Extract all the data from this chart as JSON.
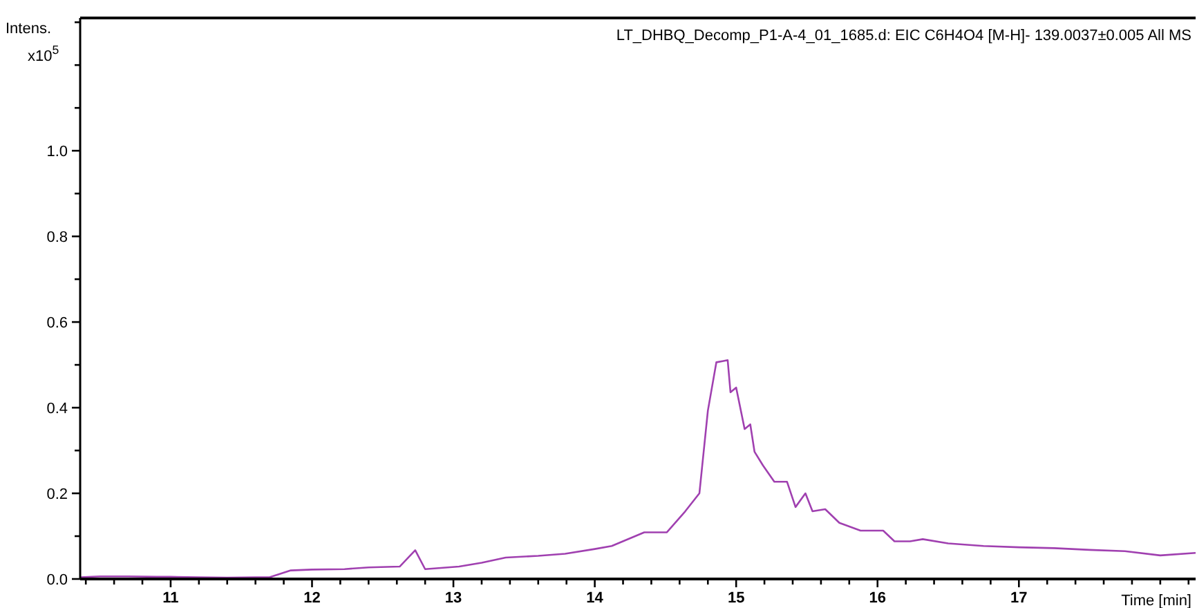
{
  "chart_data": {
    "type": "line",
    "title": "LT_DHBQ_Decomp_P1-A-4_01_1685.d: EIC C6H4O4 [M-H]- 139.0037±0.005 All MS",
    "xlabel": "Time [min]",
    "ylabel": "Intens.",
    "annotations": [
      "x10$^{5}$"
    ],
    "xlim": [
      10.36,
      18.25
    ],
    "ylim": [
      0,
      1.31
    ],
    "xticks": [
      11,
      {
        "value": 11.2,
        "label": null
      },
      {
        "value": 11.4,
        "label": null
      },
      {
        "value": 11.6,
        "label": null
      },
      {
        "value": 11.8,
        "label": null
      },
      12,
      {
        "value": 12.2,
        "label": null
      },
      {
        "value": 12.4,
        "label": null
      },
      {
        "value": 12.6,
        "label": null
      },
      {
        "value": 12.8,
        "label": null
      },
      13,
      {
        "value": 13.2,
        "label": null
      },
      {
        "value": 13.4,
        "label": null
      },
      {
        "value": 13.6,
        "label": null
      },
      {
        "value": 13.8,
        "label": null
      },
      14,
      {
        "value": 14.2,
        "label": null
      },
      {
        "value": 14.4,
        "label": null
      },
      {
        "value": 14.6,
        "label": null
      },
      {
        "value": 14.8,
        "label": null
      },
      15,
      {
        "value": 15.2,
        "label": null
      },
      {
        "value": 15.4,
        "label": null
      },
      {
        "value": 15.6,
        "label": null
      },
      {
        "value": 15.8,
        "label": null
      },
      16,
      {
        "value": 16.2,
        "label": null
      },
      {
        "value": 16.4,
        "label": null
      },
      {
        "value": 16.6,
        "label": null
      },
      {
        "value": 16.8,
        "label": null
      },
      17,
      {
        "value": 17.2,
        "label": null
      },
      {
        "value": 17.4,
        "label": null
      },
      {
        "value": 17.6,
        "label": null
      },
      {
        "value": 17.8,
        "label": null
      },
      {
        "value": 18.0,
        "label": null
      },
      {
        "value": 18.2,
        "label": null
      },
      {
        "value": 10.4,
        "label": null
      },
      {
        "value": 10.6,
        "label": null
      },
      {
        "value": 10.8,
        "label": null
      }
    ],
    "yticks": [
      {
        "value": 0,
        "label": "0.0"
      },
      {
        "value": 0.1,
        "label": null
      },
      0.2,
      {
        "value": 0.3,
        "label": null
      },
      0.4,
      {
        "value": 0.5,
        "label": null
      },
      0.6,
      {
        "value": 0.7,
        "label": null
      },
      0.8,
      {
        "value": 0.9,
        "label": null
      },
      {
        "value": 1,
        "label": "1.0"
      },
      {
        "value": 1.1,
        "label": null
      },
      {
        "value": 1.2,
        "label": null
      },
      {
        "value": 1.3,
        "label": null
      }
    ],
    "grid": false,
    "marker": "none",
    "line_style": "solid",
    "series": [
      {
        "color": "#a040b0",
        "x": [
          10.36,
          10.5,
          10.7,
          10.9,
          11.0,
          11.2,
          11.4,
          11.6,
          11.7,
          11.85,
          12.0,
          12.23,
          12.4,
          12.62,
          12.73,
          12.8,
          13.04,
          13.2,
          13.37,
          13.6,
          13.79,
          14.0,
          14.12,
          14.35,
          14.51,
          14.64,
          14.74,
          14.8,
          14.86,
          14.91,
          14.94,
          14.96,
          15.0,
          15.06,
          15.1,
          15.13,
          15.19,
          15.27,
          15.36,
          15.42,
          15.49,
          15.54,
          15.63,
          15.73,
          15.88,
          16.04,
          16.12,
          16.23,
          16.32,
          16.5,
          16.75,
          17.0,
          17.25,
          17.5,
          17.75,
          18.0,
          18.25
        ],
        "values": [
          0.004,
          0.006,
          0.006,
          0.005,
          0.005,
          0.004,
          0.003,
          0.004,
          0.004,
          0.02,
          0.022,
          0.023,
          0.027,
          0.029,
          0.067,
          0.023,
          0.029,
          0.038,
          0.05,
          0.054,
          0.059,
          0.07,
          0.077,
          0.109,
          0.109,
          0.158,
          0.2,
          0.393,
          0.506,
          0.509,
          0.511,
          0.436,
          0.447,
          0.35,
          0.361,
          0.297,
          0.265,
          0.227,
          0.227,
          0.168,
          0.2,
          0.158,
          0.163,
          0.131,
          0.113,
          0.113,
          0.088,
          0.088,
          0.093,
          0.083,
          0.077,
          0.074,
          0.072,
          0.068,
          0.065,
          0.055,
          0.061
        ]
      }
    ]
  }
}
